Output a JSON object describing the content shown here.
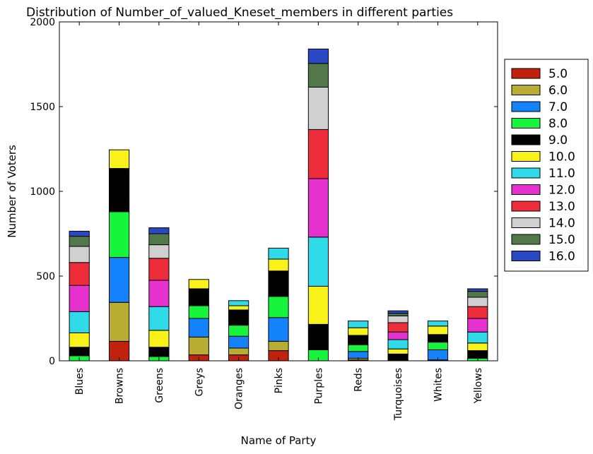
{
  "chart_data": {
    "type": "bar",
    "stacked": true,
    "title": "Distribution of Number_of_valued_Kneset_members in different parties",
    "xlabel": "Name of Party",
    "ylabel": "Number of Voters",
    "ylim": [
      0,
      2000
    ],
    "yticks": [
      0,
      500,
      1000,
      1500,
      2000
    ],
    "grid": false,
    "legend_position": "right",
    "categories": [
      "Blues",
      "Browns",
      "Greens",
      "Greys",
      "Oranges",
      "Pinks",
      "Purples",
      "Reds",
      "Turquoises",
      "Whites",
      "Yellows"
    ],
    "series": [
      {
        "name": "5.0",
        "color": "#c0220e",
        "values": [
          0,
          115,
          0,
          35,
          35,
          60,
          0,
          5,
          0,
          5,
          0
        ]
      },
      {
        "name": "6.0",
        "color": "#b8ad32",
        "values": [
          0,
          230,
          0,
          105,
          40,
          55,
          0,
          10,
          0,
          0,
          0
        ]
      },
      {
        "name": "7.0",
        "color": "#1482fa",
        "values": [
          0,
          265,
          0,
          110,
          70,
          140,
          0,
          40,
          0,
          60,
          0
        ]
      },
      {
        "name": "8.0",
        "color": "#17f43c",
        "values": [
          30,
          270,
          25,
          75,
          65,
          125,
          65,
          40,
          5,
          45,
          15
        ]
      },
      {
        "name": "9.0",
        "color": "#000000",
        "values": [
          50,
          255,
          55,
          100,
          90,
          150,
          150,
          55,
          35,
          45,
          45
        ]
      },
      {
        "name": "10.0",
        "color": "#f8f21a",
        "values": [
          85,
          110,
          100,
          55,
          25,
          70,
          225,
          45,
          30,
          50,
          45
        ]
      },
      {
        "name": "11.0",
        "color": "#2fdbe8",
        "values": [
          125,
          0,
          140,
          0,
          30,
          65,
          290,
          40,
          55,
          30,
          65
        ]
      },
      {
        "name": "12.0",
        "color": "#e631cf",
        "values": [
          155,
          0,
          155,
          0,
          0,
          0,
          345,
          0,
          45,
          0,
          80
        ]
      },
      {
        "name": "13.0",
        "color": "#ee2d3b",
        "values": [
          135,
          0,
          130,
          0,
          0,
          0,
          290,
          0,
          55,
          0,
          70
        ]
      },
      {
        "name": "14.0",
        "color": "#d0d0d0",
        "values": [
          95,
          0,
          80,
          0,
          0,
          0,
          250,
          0,
          40,
          0,
          55
        ]
      },
      {
        "name": "15.0",
        "color": "#52784a",
        "values": [
          60,
          0,
          65,
          0,
          0,
          0,
          140,
          0,
          15,
          0,
          35
        ]
      },
      {
        "name": "16.0",
        "color": "#2a48c4",
        "values": [
          30,
          0,
          35,
          0,
          0,
          0,
          85,
          0,
          15,
          0,
          15
        ]
      }
    ]
  }
}
